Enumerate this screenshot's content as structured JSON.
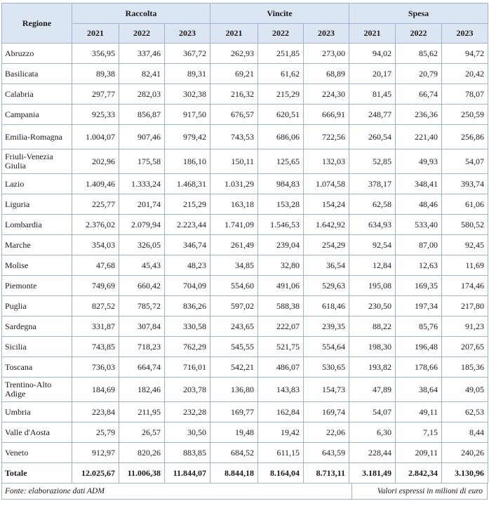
{
  "header": {
    "regione": "Regione",
    "groups": [
      "Raccolta",
      "Vincite",
      "Spesa"
    ],
    "years": [
      "2021",
      "2022",
      "2023"
    ]
  },
  "rows": [
    {
      "regione": "Abruzzo",
      "values": [
        "356,95",
        "337,46",
        "367,72",
        "262,93",
        "251,85",
        "273,00",
        "94,02",
        "85,62",
        "94,72"
      ]
    },
    {
      "regione": "Basilicata",
      "values": [
        "89,38",
        "82,41",
        "89,31",
        "69,21",
        "61,62",
        "68,89",
        "20,17",
        "20,79",
        "20,42"
      ]
    },
    {
      "regione": "Calabria",
      "values": [
        "297,77",
        "282,03",
        "302,38",
        "216,32",
        "215,29",
        "224,30",
        "81,45",
        "66,74",
        "78,07"
      ]
    },
    {
      "regione": "Campania",
      "values": [
        "925,33",
        "856,87",
        "917,50",
        "676,57",
        "620,51",
        "666,91",
        "248,77",
        "236,36",
        "250,59"
      ]
    },
    {
      "regione": "Emilia-Romagna",
      "values": [
        "1.004,07",
        "907,46",
        "979,42",
        "743,53",
        "686,06",
        "722,56",
        "260,54",
        "221,40",
        "256,86"
      ]
    },
    {
      "regione": "Friuli-Venezia Giulia",
      "values": [
        "202,96",
        "175,58",
        "186,10",
        "150,11",
        "125,65",
        "132,03",
        "52,85",
        "49,93",
        "54,07"
      ]
    },
    {
      "regione": "Lazio",
      "values": [
        "1.409,46",
        "1.333,24",
        "1.468,31",
        "1.031,29",
        "984,83",
        "1.074,58",
        "378,17",
        "348,41",
        "393,74"
      ]
    },
    {
      "regione": "Liguria",
      "values": [
        "225,77",
        "201,74",
        "215,29",
        "163,18",
        "153,28",
        "154,24",
        "62,58",
        "48,46",
        "61,06"
      ]
    },
    {
      "regione": "Lombardia",
      "values": [
        "2.376,02",
        "2.079,94",
        "2.223,44",
        "1.741,09",
        "1.546,53",
        "1.642,92",
        "634,93",
        "533,40",
        "580,52"
      ]
    },
    {
      "regione": "Marche",
      "values": [
        "354,03",
        "326,05",
        "346,74",
        "261,49",
        "239,04",
        "254,29",
        "92,54",
        "87,00",
        "92,45"
      ]
    },
    {
      "regione": "Molise",
      "values": [
        "47,68",
        "45,43",
        "48,23",
        "34,85",
        "32,80",
        "36,54",
        "12,84",
        "12,63",
        "11,69"
      ]
    },
    {
      "regione": "Piemonte",
      "values": [
        "749,69",
        "660,42",
        "704,09",
        "554,60",
        "491,06",
        "529,63",
        "195,08",
        "169,35",
        "174,46"
      ]
    },
    {
      "regione": "Puglia",
      "values": [
        "827,52",
        "785,72",
        "836,26",
        "597,02",
        "588,38",
        "618,46",
        "230,50",
        "197,34",
        "217,80"
      ]
    },
    {
      "regione": "Sardegna",
      "values": [
        "331,87",
        "307,84",
        "330,58",
        "243,65",
        "222,07",
        "239,35",
        "88,22",
        "85,76",
        "91,23"
      ]
    },
    {
      "regione": "Sicilia",
      "values": [
        "743,85",
        "718,23",
        "762,29",
        "545,55",
        "521,75",
        "554,64",
        "198,30",
        "196,48",
        "207,65"
      ]
    },
    {
      "regione": "Toscana",
      "values": [
        "736,03",
        "664,74",
        "716,01",
        "542,21",
        "486,07",
        "530,65",
        "193,82",
        "178,66",
        "185,36"
      ]
    },
    {
      "regione": "Trentino-Alto Adige",
      "values": [
        "184,69",
        "182,46",
        "203,78",
        "136,80",
        "143,83",
        "154,73",
        "47,89",
        "38,64",
        "49,05"
      ]
    },
    {
      "regione": "Umbria",
      "values": [
        "223,84",
        "211,95",
        "232,28",
        "169,77",
        "162,84",
        "169,74",
        "54,07",
        "49,11",
        "62,53"
      ]
    },
    {
      "regione": "Valle d'Aosta",
      "values": [
        "25,79",
        "26,57",
        "30,50",
        "19,48",
        "19,42",
        "22,06",
        "6,30",
        "7,15",
        "8,44"
      ]
    },
    {
      "regione": "Veneto",
      "values": [
        "912,97",
        "820,26",
        "883,85",
        "684,52",
        "611,15",
        "643,59",
        "228,44",
        "209,11",
        "240,26"
      ]
    }
  ],
  "total": {
    "regione": "Totale",
    "values": [
      "12.025,67",
      "11.006,38",
      "11.844,07",
      "8.844,18",
      "8.164,04",
      "8.713,11",
      "3.181,49",
      "2.842,34",
      "3.130,96"
    ]
  },
  "footer": {
    "source": "Fonte: elaborazione dati ADM",
    "note": "Valori espressi in milioni di euro"
  }
}
